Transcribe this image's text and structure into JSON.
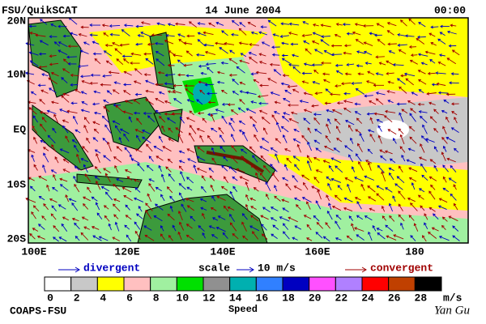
{
  "header": {
    "left": "FSU/QuikSCAT",
    "center": "14 June 2004",
    "right": "00:00"
  },
  "axes": {
    "lat_labels": [
      "20N",
      "10N",
      "EQ",
      "10S",
      "20S"
    ],
    "lon_labels": [
      "100E",
      "120E",
      "140E",
      "160E",
      "180"
    ]
  },
  "legend": {
    "divergent": "divergent",
    "scale": "scale",
    "scale_value": "10 m/s",
    "convergent": "convergent"
  },
  "colorbar": {
    "ticks": [
      0,
      2,
      4,
      6,
      8,
      10,
      12,
      14,
      16,
      18,
      20,
      22,
      24,
      26,
      28
    ],
    "unit": "m/s",
    "label": "Speed",
    "colors": [
      "#ffffff",
      "#c8c8c8",
      "#ffff00",
      "#ffc0c0",
      "#a0f0a0",
      "#00e000",
      "#909090",
      "#00b0b0",
      "#3080ff",
      "#0000c0",
      "#ff50ff",
      "#b080ff",
      "#ff0000",
      "#c04000",
      "#000000"
    ]
  },
  "footer": {
    "left": "COAPS-FSU",
    "right": "Yan Gu"
  }
}
